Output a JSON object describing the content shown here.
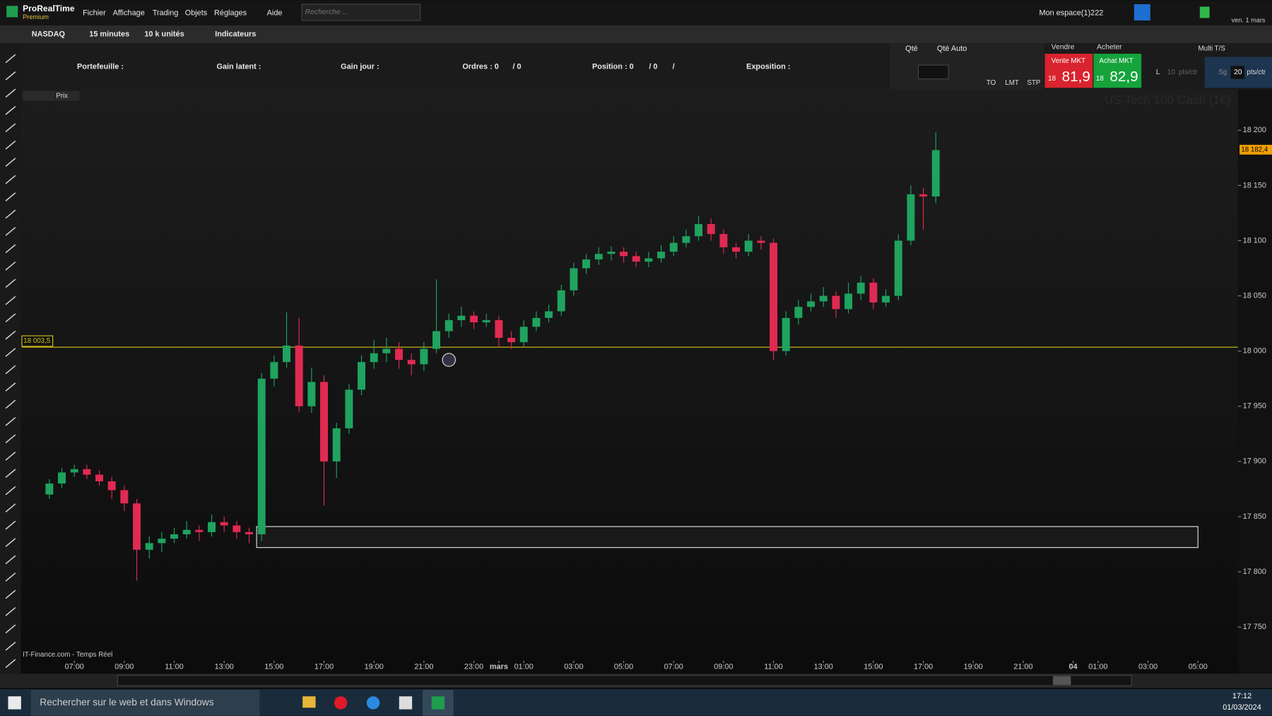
{
  "ui": {
    "app": "ProRealTime",
    "edition": "Premium",
    "menu": [
      "Fichier",
      "Affichage",
      "Trading",
      "Objets",
      "Réglages",
      "Aide"
    ],
    "search": "Recherche ...",
    "workspace": "Mon espace(1)222",
    "date_top": "ven. 1 mars",
    "toolbar": {
      "market": "NASDAQ",
      "period": "15 minutes",
      "units": "10 k unités",
      "indicators": "Indicateurs"
    },
    "info": {
      "portfolio": "Portefeuille :",
      "latent": "Gain latent :",
      "day": "Gain jour :",
      "orders": "Ordres : 0",
      "orders2": "/ 0",
      "position": "Position : 0",
      "position2": "/ 0",
      "position3": "/",
      "exposure": "Exposition :"
    },
    "order": {
      "qty": "Qté",
      "qty_auto": "Qté Auto",
      "to": "TO",
      "lmt": "LMT",
      "stp": "STP",
      "sell": "Vendre",
      "buy": "Acheter",
      "sell_mkt": "Vente MKT",
      "buy_mkt": "Achat MKT",
      "bid_big": "18",
      "bid": "81,9",
      "ask_big": "18",
      "ask": "82,9",
      "l": "L",
      "l_val": "10",
      "l_unit": "pts/ctr",
      "sg": "Sg",
      "sg_val": "20",
      "sg_unit": "pts/ctr",
      "multi": "Multi T/S"
    },
    "chart_label": "Prix",
    "taskbar": {
      "search": "Rechercher sur le web et dans Windows",
      "time": "17:12",
      "date": "01/03/2024"
    }
  },
  "chart_data": {
    "type": "candlestick",
    "title": "US Tech 100 Cash (1€)",
    "source": "IT-Finance.com - Temps Réel",
    "x": [
      6,
      6.5,
      7,
      7.5,
      8,
      8.5,
      9,
      9.5,
      10,
      10.5,
      11,
      11.5,
      12,
      12.5,
      13,
      13.5,
      14,
      14.5,
      15,
      15.5,
      16,
      16.5,
      17,
      17.5,
      18,
      18.5,
      19,
      19.5,
      20,
      20.5,
      21,
      21.5,
      22,
      22.5,
      23,
      23.5,
      24,
      24.5,
      25,
      25.5,
      26,
      26.5,
      27,
      27.5,
      28,
      28.5,
      29,
      29.5,
      30,
      30.5,
      31,
      31.5,
      32,
      32.5,
      33,
      33.5,
      34,
      34.5,
      35,
      35.5,
      36,
      36.5,
      37,
      37.5,
      38,
      38.5,
      39,
      39.5,
      40,
      40.5,
      41,
      41.5
    ],
    "open": [
      17870,
      17880,
      17890,
      17893,
      17888,
      17882,
      17874,
      17862,
      17820,
      17826,
      17830,
      17834,
      17838,
      17836,
      17845,
      17842,
      17836,
      17834,
      17975,
      17990,
      18005,
      17950,
      17972,
      17900,
      17930,
      17965,
      17990,
      17998,
      18002,
      17992,
      17988,
      18002,
      18018,
      18028,
      18032,
      18026,
      18028,
      18012,
      18008,
      18022,
      18030,
      18036,
      18055,
      18075,
      18083,
      18088,
      18090,
      18086,
      18081,
      18084,
      18090,
      18098,
      18104,
      18115,
      18106,
      18094,
      18090,
      18100,
      18098,
      18000,
      18030,
      18040,
      18045,
      18050,
      18038,
      18052,
      18062,
      18044,
      18050,
      18100,
      18142,
      18140
    ],
    "high": [
      17884,
      17894,
      17897,
      17897,
      17892,
      17886,
      17878,
      17866,
      17832,
      17836,
      17840,
      17846,
      17842,
      17852,
      17850,
      17846,
      17840,
      17980,
      17996,
      18035,
      18030,
      17985,
      17978,
      17935,
      17970,
      17996,
      18010,
      18012,
      18008,
      17998,
      18008,
      18065,
      18034,
      18040,
      18036,
      18034,
      18032,
      18018,
      18028,
      18036,
      18042,
      18060,
      18080,
      18088,
      18094,
      18095,
      18094,
      18090,
      18090,
      18096,
      18104,
      18110,
      18122,
      18120,
      18110,
      18098,
      18106,
      18104,
      18102,
      18036,
      18046,
      18052,
      18058,
      18054,
      18062,
      18068,
      18066,
      18056,
      18106,
      18150,
      18148,
      18198
    ],
    "low": [
      17866,
      17876,
      17886,
      17884,
      17878,
      17866,
      17855,
      17792,
      17812,
      17818,
      17826,
      17830,
      17828,
      17832,
      17836,
      17830,
      17826,
      17828,
      17968,
      17985,
      17945,
      17944,
      17860,
      17885,
      17925,
      17960,
      17984,
      17990,
      17984,
      17978,
      17982,
      17998,
      18012,
      18022,
      18020,
      18022,
      18004,
      18002,
      18004,
      18018,
      18026,
      18032,
      18050,
      18070,
      18078,
      18082,
      18080,
      18076,
      18076,
      18080,
      18086,
      18094,
      18100,
      18100,
      18088,
      18084,
      18086,
      18092,
      17992,
      17996,
      18024,
      18036,
      18040,
      18030,
      18034,
      18046,
      18038,
      18040,
      18046,
      18096,
      18110,
      18134
    ],
    "close": [
      17880,
      17890,
      17893,
      17888,
      17882,
      17874,
      17862,
      17820,
      17826,
      17830,
      17834,
      17838,
      17836,
      17845,
      17842,
      17836,
      17834,
      17975,
      17990,
      18005,
      17950,
      17972,
      17900,
      17930,
      17965,
      17990,
      17998,
      18002,
      17992,
      17988,
      18002,
      18018,
      18028,
      18032,
      18026,
      18028,
      18012,
      18008,
      18022,
      18030,
      18036,
      18055,
      18075,
      18083,
      18088,
      18090,
      18086,
      18081,
      18084,
      18090,
      18098,
      18104,
      18115,
      18106,
      18094,
      18090,
      18100,
      18098,
      18000,
      18030,
      18040,
      18045,
      18050,
      18038,
      18052,
      18062,
      18044,
      18050,
      18100,
      18142,
      18140,
      18182
    ],
    "up_color": "#1fa35f",
    "down_color": "#e02a52",
    "xlim": [
      4.9,
      53.6
    ],
    "xticks": [
      {
        "value": 7,
        "label": "07:00"
      },
      {
        "value": 9,
        "label": "09:00"
      },
      {
        "value": 11,
        "label": "11:00"
      },
      {
        "value": 13,
        "label": "13:00"
      },
      {
        "value": 15,
        "label": "15:00"
      },
      {
        "value": 17,
        "label": "17:00"
      },
      {
        "value": 19,
        "label": "19:00"
      },
      {
        "value": 21,
        "label": "21:00"
      },
      {
        "value": 23,
        "label": "23:00"
      },
      {
        "value": 24,
        "label": "mars"
      },
      {
        "value": 25,
        "label": "01:00"
      },
      {
        "value": 27,
        "label": "03:00"
      },
      {
        "value": 29,
        "label": "05:00"
      },
      {
        "value": 31,
        "label": "07:00"
      },
      {
        "value": 33,
        "label": "09:00"
      },
      {
        "value": 35,
        "label": "11:00"
      },
      {
        "value": 37,
        "label": "13:00"
      },
      {
        "value": 39,
        "label": "15:00"
      },
      {
        "value": 41,
        "label": "17:00"
      },
      {
        "value": 43,
        "label": "19:00"
      },
      {
        "value": 45,
        "label": "21:00"
      },
      {
        "value": 47,
        "label": "04"
      },
      {
        "value": 48,
        "label": "01:00"
      },
      {
        "value": 50,
        "label": "03:00"
      },
      {
        "value": 52,
        "label": "05:00"
      }
    ],
    "ylim": [
      17721,
      18237
    ],
    "yticks": [
      {
        "value": 17750,
        "label": "17 750"
      },
      {
        "value": 17800,
        "label": "17 800"
      },
      {
        "value": 17850,
        "label": "17 850"
      },
      {
        "value": 17900,
        "label": "17 900"
      },
      {
        "value": 17950,
        "label": "17 950"
      },
      {
        "value": 18000,
        "label": "18 000"
      },
      {
        "value": 18050,
        "label": "18 050"
      },
      {
        "value": 18100,
        "label": "18 100"
      },
      {
        "value": 18150,
        "label": "18 150"
      },
      {
        "value": 18200,
        "label": "18 200"
      }
    ],
    "hline": {
      "value": 18003.5,
      "label": "18 003,5",
      "color": "#d4c21a"
    },
    "last_price": {
      "value": 18182.4,
      "label": "18 182,4",
      "color": "#f0a000"
    },
    "zone": {
      "x": [
        14.3,
        52
      ],
      "y": [
        17822,
        17841
      ]
    },
    "marker": {
      "x": 22,
      "y": 17992
    }
  }
}
